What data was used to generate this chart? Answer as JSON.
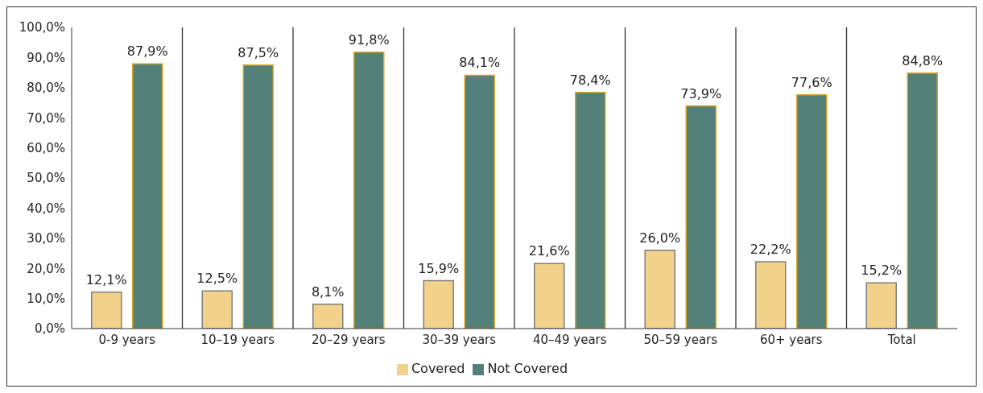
{
  "chart_data": {
    "type": "bar",
    "categories": [
      "0-9 years",
      "10–19 years",
      "20–29 years",
      "30–39 years",
      "40–49 years",
      "50–59 years",
      "60+ years",
      "Total"
    ],
    "series": [
      {
        "name": "Covered",
        "color": "#f2d18b",
        "values": [
          12.1,
          12.5,
          8.1,
          15.9,
          21.6,
          26.0,
          22.2,
          15.2
        ],
        "value_labels": [
          "12,1%",
          "12,5%",
          "8,1%",
          "15,9%",
          "21,6%",
          "26,0%",
          "22,2%",
          "15,2%"
        ]
      },
      {
        "name": "Not Covered",
        "color": "#538079",
        "values": [
          87.9,
          87.5,
          91.8,
          84.1,
          78.4,
          73.9,
          77.6,
          84.8
        ],
        "value_labels": [
          "87,9%",
          "87,5%",
          "91,8%",
          "84,1%",
          "78,4%",
          "73,9%",
          "77,6%",
          "84,8%"
        ]
      }
    ],
    "ylim": [
      0,
      100
    ],
    "yticks": [
      {
        "value": 0,
        "label": "0,0%"
      },
      {
        "value": 10,
        "label": "10,0%"
      },
      {
        "value": 20,
        "label": "20,0%"
      },
      {
        "value": 30,
        "label": "30,0%"
      },
      {
        "value": 40,
        "label": "40,0%"
      },
      {
        "value": 50,
        "label": "50,0%"
      },
      {
        "value": 60,
        "label": "60,0%"
      },
      {
        "value": 70,
        "label": "70,0%"
      },
      {
        "value": 80,
        "label": "80,0%"
      },
      {
        "value": 90,
        "label": "90,0%"
      },
      {
        "value": 100,
        "label": "100,0%"
      }
    ],
    "grid": "x",
    "legend": "bottom"
  }
}
